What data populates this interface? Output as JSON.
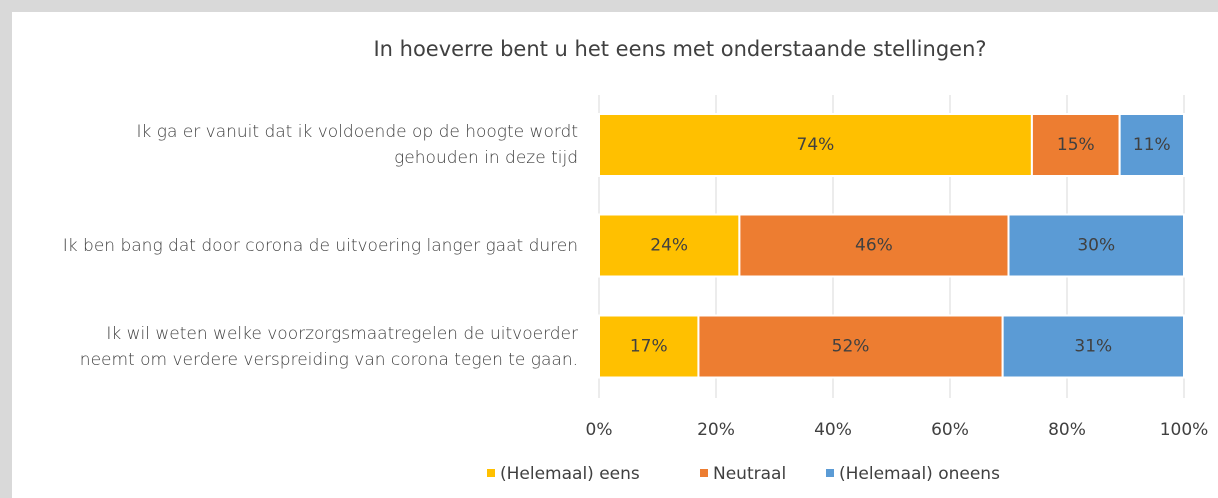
{
  "chart_data": {
    "type": "stacked_barh",
    "title": "In hoeverre bent u het eens met onderstaande stellingen?",
    "categories": [
      "Ik ga er vanuit dat ik voldoende op de hoogte wordt gehouden in deze tijd",
      "Ik ben bang dat door corona de uitvoering langer gaat duren",
      "Ik wil weten welke voorzorgsmaatregelen de uitvoerder neemt om verdere verspreiding van corona tegen te gaan."
    ],
    "series": [
      {
        "name": "(Helemaal) eens",
        "color": "#FFC000",
        "values": [
          74,
          24,
          17
        ],
        "value_labels": [
          "74%",
          "24%",
          "17%"
        ]
      },
      {
        "name": "Neutraal",
        "color": "#ED7D31",
        "values": [
          15,
          46,
          52
        ],
        "value_labels": [
          "15%",
          "46%",
          "52%"
        ]
      },
      {
        "name": "(Helemaal) oneens",
        "color": "#5B9BD5",
        "values": [
          11,
          30,
          31
        ],
        "value_labels": [
          "11%",
          "30%",
          "31%"
        ]
      }
    ],
    "xlim": [
      0,
      100
    ],
    "xticks": [
      {
        "value": 0,
        "label": "0%"
      },
      {
        "value": 20,
        "label": "20%"
      },
      {
        "value": 40,
        "label": "40%"
      },
      {
        "value": 60,
        "label": "60%"
      },
      {
        "value": 80,
        "label": "80%"
      },
      {
        "value": 100,
        "label": "100%"
      }
    ],
    "grid": true,
    "legend": "bottom"
  }
}
